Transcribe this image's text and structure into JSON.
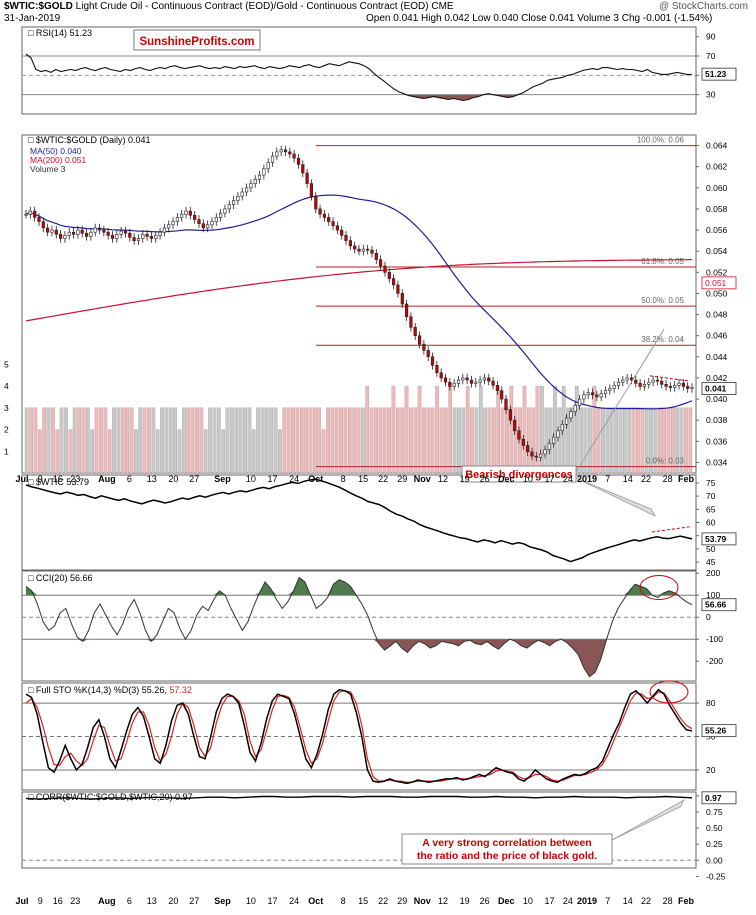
{
  "header": {
    "title_bold": "$WTIC:$GOLD",
    "title_rest": "Light Crude Oil - Continuous Contract (EOD)/Gold - Continuous Contract (EOD)",
    "exchange": "CME",
    "date": "31-Jan-2019",
    "source": "@ StockCharts.com",
    "ohlc": "Open 0.041  High 0.042  Low 0.040  Close 0.041  Volume 3  Chg -0.001 (-1.54%)"
  },
  "watermark": "SunshineProfits.com",
  "annotations": {
    "bearish": "Bearish divergences",
    "corr_line1": "A very strong correlation between",
    "corr_line2": "the ratio and the price of black gold."
  },
  "colors": {
    "up": "#ffffff",
    "down": "#cc0000",
    "ma50": "#1e1e9a",
    "ma200": "#cc1133",
    "fib": "#b22222",
    "volume": "#c8c8c8",
    "volume_down": "#f0b8b8",
    "accent_red": "#cc0000",
    "fill_green": "#4e7a4e",
    "fill_brown": "#8a5555"
  },
  "x_axis": {
    "labels": [
      "Jul",
      "9",
      "16",
      "23",
      "Aug",
      "6",
      "13",
      "20",
      "27",
      "Sep",
      "10",
      "17",
      "24",
      "Oct",
      "8",
      "15",
      "22",
      "29",
      "Nov",
      "12",
      "19",
      "26",
      "Dec",
      "10",
      "17",
      "24",
      "2019",
      "7",
      "14",
      "22",
      "28",
      "Feb"
    ],
    "bold": [
      "Jul",
      "Aug",
      "Sep",
      "Oct",
      "Nov",
      "Dec",
      "2019",
      "Feb"
    ]
  },
  "chart_data": [
    {
      "type": "line",
      "id": "rsi",
      "title": "RSI(14) 51.23",
      "ylim": [
        10,
        100
      ],
      "yticks": [
        90,
        70,
        50,
        30
      ],
      "ref_lines": [
        70,
        30
      ],
      "last_label": "51.23",
      "values": [
        72,
        68,
        56,
        54,
        55,
        53,
        56,
        54,
        55,
        56,
        55,
        57,
        58,
        56,
        55,
        57,
        58,
        56,
        55,
        54,
        56,
        55,
        57,
        58,
        56,
        55,
        57,
        58,
        57,
        59,
        60,
        58,
        57,
        58,
        59,
        60,
        58,
        57,
        58,
        57,
        59,
        58,
        57,
        59,
        58,
        59,
        60,
        58,
        57,
        59,
        58,
        57,
        58,
        60,
        59,
        58,
        60,
        61,
        59,
        58,
        60,
        62,
        61,
        60,
        62,
        64,
        63,
        62,
        60,
        57,
        52,
        48,
        44,
        40,
        36,
        33,
        31,
        29,
        28,
        27,
        26,
        27,
        28,
        27,
        26,
        25,
        26,
        25,
        24,
        25,
        27,
        28,
        30,
        31,
        30,
        29,
        28,
        27,
        28,
        30,
        32,
        35,
        38,
        40,
        42,
        45,
        46,
        47,
        48,
        50,
        51,
        53,
        55,
        56,
        57,
        56,
        58,
        58,
        57,
        56,
        57,
        56,
        56,
        55,
        54,
        56,
        53,
        52,
        51,
        51,
        52,
        53,
        52,
        51,
        51
      ]
    },
    {
      "type": "candlestick",
      "id": "price",
      "title": "$WTIC:$GOLD (Daily) 0.041",
      "legend": [
        "MA(50) 0.040",
        "MA(200) 0.051",
        "Volume 3"
      ],
      "ylim": [
        0.033,
        0.065
      ],
      "yticks": [
        0.034,
        0.036,
        0.038,
        0.04,
        0.042,
        0.044,
        0.046,
        0.048,
        0.05,
        0.052,
        0.054,
        0.056,
        0.058,
        0.06,
        0.062,
        0.064
      ],
      "close_label": "0.041",
      "ma200_label": "0.051",
      "fib_levels": [
        {
          "value": 0.064,
          "label": "100.0%: 0.06"
        },
        {
          "value": 0.0525,
          "label": "61.8%: 0.05"
        },
        {
          "value": 0.0488,
          "label": "50.0%: 0.05"
        },
        {
          "value": 0.0451,
          "label": "38.2%: 0.04"
        },
        {
          "value": 0.0336,
          "label": "0.0%: 0.03"
        }
      ],
      "closes": [
        0.0575,
        0.0578,
        0.0572,
        0.0568,
        0.0562,
        0.0558,
        0.056,
        0.0556,
        0.0552,
        0.0555,
        0.0558,
        0.0556,
        0.056,
        0.0557,
        0.0554,
        0.0558,
        0.0562,
        0.056,
        0.0558,
        0.0555,
        0.0552,
        0.0556,
        0.0559,
        0.0557,
        0.0553,
        0.055,
        0.0552,
        0.0556,
        0.0554,
        0.0552,
        0.0555,
        0.0558,
        0.0562,
        0.0565,
        0.0568,
        0.0572,
        0.0575,
        0.0578,
        0.0574,
        0.057,
        0.0566,
        0.0562,
        0.0565,
        0.0568,
        0.0572,
        0.0576,
        0.058,
        0.0584,
        0.0588,
        0.0592,
        0.0596,
        0.06,
        0.0604,
        0.0608,
        0.0612,
        0.0618,
        0.0624,
        0.063,
        0.0634,
        0.0636,
        0.0634,
        0.0632,
        0.0628,
        0.0622,
        0.0614,
        0.0604,
        0.0592,
        0.058,
        0.0575,
        0.0572,
        0.0568,
        0.0564,
        0.056,
        0.0555,
        0.055,
        0.0545,
        0.0542,
        0.054,
        0.0542,
        0.0541,
        0.0538,
        0.0532,
        0.0526,
        0.052,
        0.0514,
        0.0508,
        0.05,
        0.049,
        0.0478,
        0.0468,
        0.046,
        0.0452,
        0.0446,
        0.044,
        0.0432,
        0.0425,
        0.042,
        0.0416,
        0.0412,
        0.0415,
        0.0418,
        0.042,
        0.0418,
        0.0415,
        0.0416,
        0.0418,
        0.042,
        0.0417,
        0.0413,
        0.0408,
        0.04,
        0.039,
        0.038,
        0.037,
        0.0362,
        0.0356,
        0.035,
        0.0346,
        0.0345,
        0.0348,
        0.0352,
        0.0358,
        0.0364,
        0.037,
        0.0376,
        0.0382,
        0.0388,
        0.0394,
        0.04,
        0.0404,
        0.0406,
        0.0404,
        0.0402,
        0.0405,
        0.0408,
        0.041,
        0.0413,
        0.0416,
        0.0418,
        0.042,
        0.0418,
        0.0415,
        0.0412,
        0.0414,
        0.0416,
        0.0418,
        0.0417,
        0.0414,
        0.0412,
        0.0411,
        0.0413,
        0.0415,
        0.0412,
        0.041,
        0.0411
      ]
    },
    {
      "type": "bar",
      "id": "volume",
      "yticks": [
        1,
        2,
        3,
        4,
        5
      ],
      "last_label": "3",
      "values": [
        3,
        3,
        3,
        2,
        3,
        3,
        3,
        2,
        3,
        3,
        2,
        3,
        3,
        3,
        3,
        2,
        3,
        3,
        3,
        2,
        3,
        3,
        3,
        3,
        3,
        2,
        3,
        3,
        3,
        3,
        2,
        3,
        3,
        3,
        3,
        2,
        3,
        3,
        3,
        3,
        3,
        2,
        3,
        3,
        3,
        2,
        3,
        3,
        3,
        3,
        3,
        3,
        2,
        3,
        3,
        3,
        3,
        3,
        2,
        3,
        3,
        3,
        3,
        3,
        3,
        3,
        3,
        3,
        2,
        3,
        3,
        3,
        3,
        3,
        3,
        3,
        3,
        3,
        4,
        3,
        3,
        3,
        3,
        3,
        4,
        3,
        3,
        4,
        3,
        3,
        4,
        3,
        3,
        3,
        4,
        3,
        3,
        4,
        3,
        3,
        3,
        4,
        3,
        3,
        4,
        3,
        3,
        3,
        4,
        3,
        3,
        4,
        3,
        3,
        4,
        3,
        3,
        4,
        4,
        3,
        3,
        4,
        3,
        4,
        3,
        3,
        4,
        3,
        3,
        3,
        4,
        3,
        3,
        3,
        3,
        3,
        3,
        3,
        3,
        3,
        3,
        3,
        3,
        3,
        3,
        3,
        3,
        3,
        3,
        3,
        3,
        3,
        3
      ]
    },
    {
      "type": "line",
      "id": "wtic",
      "title": "$WTIC 53.79",
      "ylim": [
        42,
        78
      ],
      "yticks": [
        75,
        70,
        65,
        60,
        55,
        50,
        45
      ],
      "last_label": "53.79",
      "values": [
        74.2,
        73.5,
        73.0,
        72.4,
        71.8,
        71.2,
        70.8,
        71.5,
        71.0,
        70.3,
        70.6,
        69.8,
        69.2,
        70.1,
        69.5,
        68.9,
        68.4,
        69.0,
        68.2,
        67.6,
        67.1,
        67.8,
        68.5,
        68.0,
        67.4,
        67.9,
        68.6,
        69.3,
        68.8,
        69.5,
        70.1,
        69.6,
        70.3,
        70.9,
        71.4,
        70.8,
        71.5,
        72.0,
        71.6,
        72.2,
        72.9,
        73.3,
        72.8,
        73.6,
        74.1,
        74.7,
        75.2,
        74.8,
        75.6,
        76.1,
        76.4,
        75.8,
        75.1,
        74.3,
        73.5,
        72.4,
        71.2,
        70.1,
        69.2,
        68.0,
        67.4,
        66.8,
        65.6,
        64.2,
        63.1,
        62.4,
        61.3,
        60.5,
        59.2,
        58.3,
        57.6,
        56.9,
        56.1,
        55.4,
        54.8,
        54.2,
        53.9,
        53.2,
        52.6,
        53.4,
        53.0,
        52.3,
        53.1,
        52.5,
        51.8,
        52.4,
        51.9,
        50.8,
        50.2,
        49.6,
        48.8,
        47.5,
        46.8,
        46.1,
        45.2,
        45.9,
        46.6,
        47.8,
        48.6,
        49.4,
        50.1,
        50.8,
        51.4,
        52.1,
        52.8,
        53.4,
        53.0,
        53.6,
        54.2,
        54.6,
        54.1,
        53.9,
        54.4,
        54.8,
        54.3,
        53.79
      ]
    },
    {
      "type": "line",
      "id": "cci",
      "title": "CCI(20) 56.66",
      "ylim": [
        -290,
        210
      ],
      "yticks": [
        200,
        100,
        0,
        -100,
        -200
      ],
      "ref_lines": [
        100,
        0,
        -100
      ],
      "last_label": "56.66",
      "values": [
        140,
        120,
        60,
        -20,
        -60,
        -40,
        20,
        40,
        -30,
        -90,
        -110,
        -60,
        20,
        60,
        10,
        -40,
        -80,
        -30,
        40,
        80,
        20,
        -60,
        -110,
        -80,
        -20,
        40,
        20,
        -50,
        -100,
        -60,
        10,
        50,
        30,
        80,
        120,
        100,
        40,
        -10,
        -60,
        -20,
        50,
        110,
        160,
        130,
        80,
        40,
        70,
        120,
        180,
        160,
        100,
        40,
        60,
        90,
        150,
        170,
        160,
        140,
        100,
        60,
        10,
        -60,
        -120,
        -150,
        -130,
        -110,
        -140,
        -160,
        -130,
        -110,
        -120,
        -140,
        -130,
        -110,
        -115,
        -120,
        -130,
        -110,
        -105,
        -120,
        -125,
        -110,
        -130,
        -145,
        -120,
        -100,
        -110,
        -130,
        -140,
        -120,
        -105,
        -115,
        -130,
        -110,
        -100,
        -115,
        -140,
        -170,
        -230,
        -270,
        -250,
        -190,
        -100,
        -20,
        40,
        80,
        120,
        150,
        140,
        130,
        100,
        90,
        110,
        120,
        110,
        90,
        70,
        57
      ]
    },
    {
      "type": "line",
      "id": "sto",
      "title": "Full STO %K(14,3) %D(3) 55.26, 57.32",
      "ylim": [
        2,
        98
      ],
      "yticks": [
        80,
        50,
        20
      ],
      "ref_lines": [
        80,
        50,
        20
      ],
      "last_label": "55.26",
      "series": [
        {
          "name": "%K",
          "values": [
            88,
            85,
            70,
            45,
            22,
            18,
            28,
            42,
            30,
            20,
            25,
            40,
            58,
            65,
            50,
            30,
            22,
            38,
            55,
            70,
            76,
            68,
            50,
            30,
            26,
            42,
            64,
            78,
            80,
            70,
            50,
            32,
            30,
            50,
            72,
            84,
            88,
            86,
            80,
            60,
            36,
            28,
            44,
            66,
            82,
            88,
            86,
            84,
            70,
            50,
            30,
            22,
            34,
            52,
            74,
            88,
            92,
            91,
            88,
            72,
            50,
            20,
            10,
            9,
            10,
            12,
            10,
            9,
            8,
            9,
            11,
            10,
            9,
            10,
            11,
            12,
            12,
            13,
            11,
            12,
            14,
            16,
            14,
            18,
            22,
            20,
            18,
            17,
            12,
            10,
            14,
            20,
            16,
            12,
            10,
            9,
            12,
            14,
            16,
            15,
            17,
            20,
            22,
            28,
            40,
            52,
            62,
            76,
            88,
            91,
            86,
            80,
            86,
            92,
            88,
            78,
            70,
            62,
            56,
            55
          ]
        },
        {
          "name": "%D",
          "values": [
            80,
            84,
            76,
            60,
            40,
            25,
            24,
            32,
            35,
            28,
            24,
            30,
            46,
            60,
            58,
            42,
            28,
            30,
            45,
            62,
            72,
            72,
            60,
            40,
            28,
            34,
            50,
            70,
            80,
            76,
            60,
            40,
            32,
            40,
            62,
            78,
            86,
            86,
            82,
            70,
            46,
            32,
            38,
            56,
            74,
            86,
            87,
            85,
            76,
            58,
            38,
            26,
            30,
            44,
            64,
            82,
            90,
            91,
            90,
            80,
            60,
            30,
            14,
            10,
            10,
            11,
            10,
            10,
            9,
            9,
            10,
            10,
            10,
            10,
            10,
            11,
            12,
            12,
            12,
            12,
            13,
            14,
            15,
            16,
            19,
            20,
            19,
            18,
            14,
            12,
            13,
            16,
            16,
            14,
            11,
            10,
            11,
            13,
            15,
            15,
            16,
            18,
            20,
            25,
            34,
            46,
            58,
            70,
            82,
            89,
            88,
            84,
            85,
            90,
            89,
            82,
            74,
            66,
            60,
            57
          ]
        }
      ]
    },
    {
      "type": "line",
      "id": "corr",
      "title": "CORR($WTIC:$GOLD,$WTIC,20) 0.97",
      "ylim": [
        -0.12,
        1.06
      ],
      "yticks": [
        1.0,
        0.75,
        0.5,
        0.25,
        0.0,
        -0.25
      ],
      "tick_labels": [
        "1.00",
        "0.75",
        "0.50",
        "0.25",
        "0.00",
        "-0.25"
      ],
      "ref_lines": [
        0.0
      ],
      "last_label": "0.97",
      "values": [
        0.96,
        0.95,
        0.96,
        0.97,
        0.96,
        0.95,
        0.96,
        0.97,
        0.96,
        0.97,
        0.98,
        0.97,
        0.96,
        0.97,
        0.98,
        0.98,
        0.97,
        0.98,
        0.99,
        0.99,
        0.98,
        0.98,
        0.99,
        0.99,
        0.99,
        0.98,
        0.99,
        0.99,
        0.99,
        0.98,
        0.98,
        0.99,
        0.99,
        0.99,
        0.98,
        0.98,
        0.99,
        0.98,
        0.98,
        0.97,
        0.98,
        0.98,
        0.99,
        0.98,
        0.98,
        0.98,
        0.97,
        0.98,
        0.98,
        0.99,
        0.98,
        0.97
      ]
    }
  ]
}
